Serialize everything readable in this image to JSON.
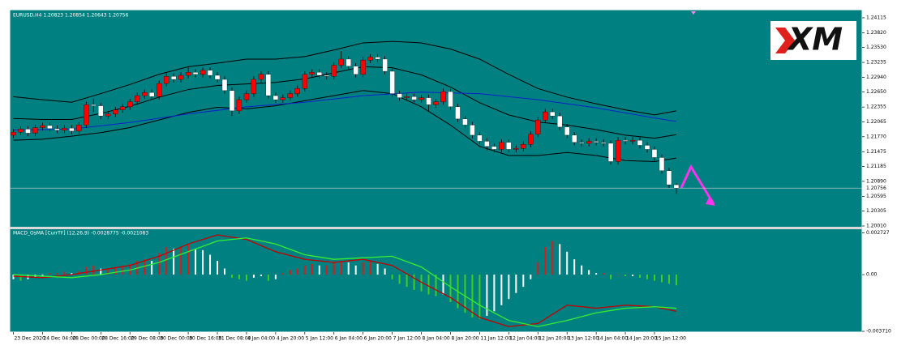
{
  "logo": "XM",
  "chart_data": [
    {
      "type": "candlestick",
      "title": "EURUSD,H4  1.20823 1.20854 1.20643 1.20756",
      "x": [
        0,
        1,
        2,
        3,
        4,
        5,
        6,
        7,
        8,
        9,
        10,
        11,
        12,
        13,
        14,
        15,
        16,
        17,
        18,
        19,
        20,
        21,
        22,
        23,
        24,
        25,
        26,
        27,
        28,
        29,
        30,
        31,
        32,
        33,
        34,
        35,
        36,
        37,
        38,
        39,
        40,
        41,
        42,
        43,
        44,
        45,
        46,
        47,
        48,
        49,
        50,
        51,
        52,
        53,
        54,
        55,
        56,
        57,
        58,
        59,
        60,
        61,
        62,
        63,
        64,
        65,
        66,
        67,
        68,
        69,
        70,
        71,
        72,
        73,
        74,
        75,
        76,
        77,
        78,
        79,
        80,
        81,
        82,
        83,
        84,
        85,
        86,
        87,
        88,
        89,
        90,
        91
      ],
      "open": [
        1.218,
        1.2186,
        1.2192,
        1.2184,
        1.2195,
        1.2199,
        1.2193,
        1.219,
        1.2194,
        1.2188,
        1.22,
        1.224,
        1.2238,
        1.2218,
        1.2222,
        1.223,
        1.2236,
        1.2246,
        1.2258,
        1.2264,
        1.2256,
        1.2282,
        1.2296,
        1.229,
        1.2298,
        1.2304,
        1.23,
        1.2308,
        1.2298,
        1.229,
        1.2268,
        1.2228,
        1.225,
        1.2262,
        1.229,
        1.23,
        1.2258,
        1.225,
        1.2254,
        1.2262,
        1.2272,
        1.23,
        1.2304,
        1.2298,
        1.2296,
        1.2318,
        1.233,
        1.2316,
        1.23,
        1.2328,
        1.2334,
        1.233,
        1.2306,
        1.2262,
        1.2254,
        1.2256,
        1.225,
        1.2254,
        1.224,
        1.2246,
        1.2266,
        1.2236,
        1.2212,
        1.22,
        1.218,
        1.2168,
        1.2158,
        1.2152,
        1.2166,
        1.2152,
        1.2154,
        1.2162,
        1.2182,
        1.221,
        1.2226,
        1.2218,
        1.2196,
        1.218,
        1.2166,
        1.2164,
        1.2168,
        1.2166,
        1.2164,
        1.2128,
        1.217,
        1.2168,
        1.217,
        1.216,
        1.2152,
        1.2136,
        1.211,
        1.20823
      ],
      "high": [
        1.2192,
        1.2198,
        1.2198,
        1.2201,
        1.2205,
        1.2205,
        1.2199,
        1.22,
        1.22,
        1.2206,
        1.2246,
        1.2252,
        1.2244,
        1.2228,
        1.2236,
        1.2242,
        1.2252,
        1.2264,
        1.227,
        1.227,
        1.2288,
        1.2302,
        1.2302,
        1.2304,
        1.2314,
        1.231,
        1.2314,
        1.2314,
        1.2304,
        1.2296,
        1.2274,
        1.2256,
        1.2268,
        1.2296,
        1.2306,
        1.2306,
        1.2264,
        1.226,
        1.2268,
        1.2278,
        1.2306,
        1.231,
        1.231,
        1.2304,
        1.2324,
        1.2346,
        1.2336,
        1.2322,
        1.2334,
        1.234,
        1.234,
        1.2336,
        1.2312,
        1.2268,
        1.2262,
        1.2262,
        1.226,
        1.226,
        1.2252,
        1.2272,
        1.2272,
        1.2242,
        1.2218,
        1.2206,
        1.2186,
        1.2174,
        1.2164,
        1.2172,
        1.2172,
        1.216,
        1.2168,
        1.2188,
        1.2216,
        1.2232,
        1.2232,
        1.2224,
        1.2202,
        1.2186,
        1.2172,
        1.2174,
        1.2174,
        1.2172,
        1.217,
        1.2176,
        1.2176,
        1.2176,
        1.2176,
        1.2166,
        1.2158,
        1.2142,
        1.2116,
        1.20854
      ],
      "low": [
        1.2174,
        1.218,
        1.2178,
        1.2178,
        1.2189,
        1.2187,
        1.2184,
        1.2184,
        1.2182,
        1.2182,
        1.2194,
        1.2226,
        1.2212,
        1.2212,
        1.2216,
        1.2224,
        1.223,
        1.224,
        1.2252,
        1.225,
        1.225,
        1.2276,
        1.2284,
        1.2284,
        1.2292,
        1.2294,
        1.2294,
        1.2292,
        1.2284,
        1.2262,
        1.2218,
        1.2222,
        1.2244,
        1.2256,
        1.2284,
        1.2252,
        1.2244,
        1.2244,
        1.2248,
        1.2256,
        1.2266,
        1.2294,
        1.2292,
        1.229,
        1.229,
        1.2312,
        1.231,
        1.2294,
        1.2294,
        1.2322,
        1.2324,
        1.23,
        1.2256,
        1.2248,
        1.2248,
        1.2244,
        1.2244,
        1.2226,
        1.2234,
        1.224,
        1.223,
        1.2206,
        1.2194,
        1.2174,
        1.2162,
        1.215,
        1.2146,
        1.2146,
        1.2146,
        1.2146,
        1.2148,
        1.2156,
        1.2176,
        1.2204,
        1.2212,
        1.219,
        1.2174,
        1.216,
        1.2158,
        1.2158,
        1.216,
        1.2158,
        1.2122,
        1.2122,
        1.2162,
        1.2162,
        1.2154,
        1.2146,
        1.213,
        1.2104,
        1.2076,
        1.20643
      ],
      "close": [
        1.2186,
        1.2192,
        1.2184,
        1.2195,
        1.2199,
        1.2193,
        1.219,
        1.2194,
        1.2188,
        1.22,
        1.224,
        1.2238,
        1.2218,
        1.2222,
        1.223,
        1.2236,
        1.2246,
        1.2258,
        1.2264,
        1.2256,
        1.2282,
        1.2296,
        1.229,
        1.2298,
        1.2304,
        1.23,
        1.2308,
        1.2298,
        1.229,
        1.2268,
        1.2228,
        1.225,
        1.2262,
        1.229,
        1.23,
        1.2258,
        1.225,
        1.2254,
        1.2262,
        1.2272,
        1.23,
        1.2304,
        1.2298,
        1.2296,
        1.2318,
        1.233,
        1.2316,
        1.23,
        1.2328,
        1.2334,
        1.233,
        1.2306,
        1.2262,
        1.2254,
        1.2256,
        1.225,
        1.2254,
        1.224,
        1.2246,
        1.2266,
        1.2236,
        1.2212,
        1.22,
        1.218,
        1.2168,
        1.2158,
        1.2152,
        1.2166,
        1.2152,
        1.2154,
        1.2162,
        1.2182,
        1.221,
        1.2226,
        1.2218,
        1.2196,
        1.218,
        1.2166,
        1.2164,
        1.2168,
        1.2166,
        1.2164,
        1.2128,
        1.217,
        1.2168,
        1.217,
        1.216,
        1.2152,
        1.2136,
        1.211,
        1.20823,
        1.20756
      ],
      "up_color": "#ff0000",
      "down_color": "#ffffff",
      "wick_color": "#000000",
      "lines": [
        {
          "color": "#000000",
          "x": [
            0,
            4,
            8,
            12,
            16,
            20,
            24,
            28,
            32,
            36,
            40,
            44,
            48,
            52,
            56,
            60,
            64,
            68,
            72,
            76,
            80,
            84,
            88,
            91
          ],
          "values": [
            1.2256,
            1.225,
            1.2245,
            1.2262,
            1.228,
            1.23,
            1.2315,
            1.2322,
            1.233,
            1.233,
            1.2335,
            1.2348,
            1.2362,
            1.2365,
            1.2362,
            1.235,
            1.233,
            1.23,
            1.2272,
            1.2255,
            1.2242,
            1.223,
            1.222,
            1.2228
          ]
        },
        {
          "color": "#000000",
          "x": [
            0,
            4,
            8,
            12,
            16,
            20,
            24,
            28,
            32,
            36,
            40,
            44,
            48,
            52,
            56,
            60,
            64,
            68,
            72,
            76,
            80,
            84,
            88,
            91
          ],
          "values": [
            1.2213,
            1.2211,
            1.2211,
            1.2223,
            1.2237,
            1.2255,
            1.227,
            1.2278,
            1.2281,
            1.2284,
            1.2291,
            1.2303,
            1.2315,
            1.2313,
            1.2299,
            1.2275,
            1.2244,
            1.222,
            1.2206,
            1.22,
            1.2191,
            1.218,
            1.2174,
            1.2181
          ]
        },
        {
          "color": "#000000",
          "x": [
            0,
            4,
            8,
            12,
            16,
            20,
            24,
            28,
            32,
            36,
            40,
            44,
            48,
            52,
            56,
            60,
            64,
            68,
            72,
            76,
            80,
            84,
            88,
            91
          ],
          "values": [
            1.217,
            1.2172,
            1.2178,
            1.2185,
            1.2195,
            1.221,
            1.2225,
            1.2235,
            1.2232,
            1.2238,
            1.2248,
            1.2258,
            1.2268,
            1.2262,
            1.2236,
            1.22,
            1.2158,
            1.214,
            1.214,
            1.2146,
            1.214,
            1.213,
            1.2128,
            1.2135
          ]
        },
        {
          "color": "#0a22cc",
          "x": [
            0,
            8,
            16,
            24,
            32,
            40,
            48,
            56,
            64,
            72,
            80,
            88,
            91
          ],
          "values": [
            1.219,
            1.2192,
            1.2205,
            1.2222,
            1.2236,
            1.2245,
            1.2258,
            1.2265,
            1.2262,
            1.225,
            1.2234,
            1.2214,
            1.2207
          ]
        }
      ],
      "current_price": 1.20756,
      "xlim": [
        -0.5,
        116.5
      ],
      "ylim": [
        1.19994,
        1.24274
      ],
      "yticks": [
        1.24115,
        {
          "value": 1.2382,
          "label": "1.23820"
        },
        {
          "value": 1.2353,
          "label": "1.23530"
        },
        1.23235,
        {
          "value": 1.2294,
          "label": "1.22940"
        },
        {
          "value": 1.2265,
          "label": "1.22650"
        },
        1.22355,
        1.22065,
        {
          "value": 1.2177,
          "label": "1.21770"
        },
        1.21475,
        1.21185,
        {
          "value": 1.2089,
          "label": "1.20890"
        },
        1.20595,
        1.20305,
        {
          "value": 1.2001,
          "label": "1.20010"
        }
      ]
    },
    {
      "type": "macd",
      "title": "MACD_OsMA [CurrTF] (12,26,9) -0.0028775 -0.0021083",
      "x": [
        0,
        1,
        2,
        3,
        4,
        5,
        6,
        7,
        8,
        9,
        10,
        11,
        12,
        13,
        14,
        15,
        16,
        17,
        18,
        19,
        20,
        21,
        22,
        23,
        24,
        25,
        26,
        27,
        28,
        29,
        30,
        31,
        32,
        33,
        34,
        35,
        36,
        37,
        38,
        39,
        40,
        41,
        42,
        43,
        44,
        45,
        46,
        47,
        48,
        49,
        50,
        51,
        52,
        53,
        54,
        55,
        56,
        57,
        58,
        59,
        60,
        61,
        62,
        63,
        64,
        65,
        66,
        67,
        68,
        69,
        70,
        71,
        72,
        73,
        74,
        75,
        76,
        77,
        78,
        79,
        80,
        81,
        82,
        83,
        84,
        85,
        86,
        87,
        88,
        89,
        90,
        91
      ],
      "values": [
        -0.0003,
        -0.0004,
        -0.0003,
        -0.0002,
        -0.0001,
        0.0001,
        0.0001,
        0.0002,
        0.0001,
        0.0002,
        0.0005,
        0.0006,
        0.0004,
        0.0004,
        0.0005,
        0.0006,
        0.0007,
        0.0009,
        0.001,
        0.0009,
        0.0014,
        0.0018,
        0.0017,
        0.0018,
        0.002,
        0.0017,
        0.0016,
        0.0013,
        0.0009,
        0.0004,
        -0.0002,
        -0.0003,
        -0.0004,
        -0.0002,
        -0.0001,
        -0.0004,
        -0.0003,
        0.0001,
        0.0003,
        0.0004,
        0.0006,
        0.0007,
        0.0006,
        0.0006,
        0.0008,
        0.0009,
        0.0008,
        0.0006,
        0.0008,
        0.0009,
        0.0007,
        0.0004,
        -0.0003,
        -0.0006,
        -0.0008,
        -0.001,
        -0.0011,
        -0.0013,
        -0.0014,
        -0.0013,
        -0.0018,
        -0.0022,
        -0.0025,
        -0.0028,
        -0.0029,
        -0.0027,
        -0.0024,
        -0.002,
        -0.0016,
        -0.0012,
        -0.0008,
        -0.0003,
        0.0008,
        0.0018,
        0.0022,
        0.002,
        0.0015,
        0.001,
        0.0006,
        0.0003,
        0.0001,
        0.0001,
        -0.0003,
        0.0,
        -0.0001,
        -0.0001,
        -0.0002,
        -0.0003,
        -0.0004,
        -0.0005,
        -0.0006,
        -0.0007
      ],
      "bar_colors": {
        "rising": "#e01818",
        "falling": "#ffffff",
        "negative_falling": "#44cc22"
      },
      "lines": [
        {
          "color": "#c40000",
          "x": [
            0,
            4,
            8,
            12,
            16,
            20,
            24,
            28,
            32,
            36,
            40,
            44,
            48,
            52,
            56,
            60,
            64,
            68,
            72,
            76,
            80,
            84,
            88,
            91
          ],
          "values": [
            -0.0001,
            -0.0002,
            0.0,
            0.0003,
            0.0006,
            0.0012,
            0.002,
            0.0026,
            0.0023,
            0.0015,
            0.001,
            0.0008,
            0.001,
            0.0006,
            -0.0005,
            -0.0015,
            -0.0028,
            -0.0034,
            -0.0032,
            -0.002,
            -0.0022,
            -0.002,
            -0.0021,
            -0.0024
          ]
        },
        {
          "color": "#33ee33",
          "x": [
            0,
            4,
            8,
            12,
            16,
            20,
            24,
            28,
            32,
            36,
            40,
            44,
            48,
            52,
            56,
            60,
            64,
            68,
            72,
            76,
            80,
            84,
            88,
            91
          ],
          "values": [
            0.0,
            -0.0001,
            -0.0002,
            0.0,
            0.0003,
            0.0008,
            0.0015,
            0.0022,
            0.0024,
            0.002,
            0.0013,
            0.001,
            0.0011,
            0.0012,
            0.0005,
            -0.0008,
            -0.002,
            -0.003,
            -0.0034,
            -0.003,
            -0.0025,
            -0.0022,
            -0.0021,
            -0.0022
          ]
        }
      ],
      "xlim": [
        -0.5,
        116.5
      ],
      "ylim": [
        -0.00376,
        0.00297
      ],
      "yticks": [
        0.002727,
        {
          "value": 0,
          "label": "0.00"
        },
        {
          "value": -0.00371,
          "label": "-0.003710"
        }
      ],
      "xticks": [
        {
          "value": 0,
          "label": "23 Dec 2020"
        },
        {
          "value": 4,
          "label": "24 Dec 04:00"
        },
        {
          "value": 8,
          "label": "28 Dec 00:00"
        },
        {
          "value": 12,
          "label": "28 Dec 16:00"
        },
        {
          "value": 16,
          "label": "29 Dec 08:00"
        },
        {
          "value": 20,
          "label": "30 Dec 00:00"
        },
        {
          "value": 24,
          "label": "30 Dec 16:00"
        },
        {
          "value": 28,
          "label": "31 Dec 08:00"
        },
        {
          "value": 32,
          "label": "4 Jan 04:00"
        },
        {
          "value": 36,
          "label": "4 Jan 20:00"
        },
        {
          "value": 40,
          "label": "5 Jan 12:00"
        },
        {
          "value": 44,
          "label": "6 Jan 04:00"
        },
        {
          "value": 48,
          "label": "6 Jan 20:00"
        },
        {
          "value": 52,
          "label": "7 Jan 12:00"
        },
        {
          "value": 56,
          "label": "8 Jan 04:00"
        },
        {
          "value": 60,
          "label": "8 Jan 20:00"
        },
        {
          "value": 64,
          "label": "11 Jan 12:00"
        },
        {
          "value": 68,
          "label": "12 Jan 04:00"
        },
        {
          "value": 72,
          "label": "12 Jan 20:00"
        },
        {
          "value": 76,
          "label": "13 Jan 12:00"
        },
        {
          "value": 80,
          "label": "14 Jan 04:00"
        },
        {
          "value": 84,
          "label": "14 Jan 20:00"
        },
        {
          "value": 88,
          "label": "15 Jan 12:00"
        }
      ]
    }
  ]
}
